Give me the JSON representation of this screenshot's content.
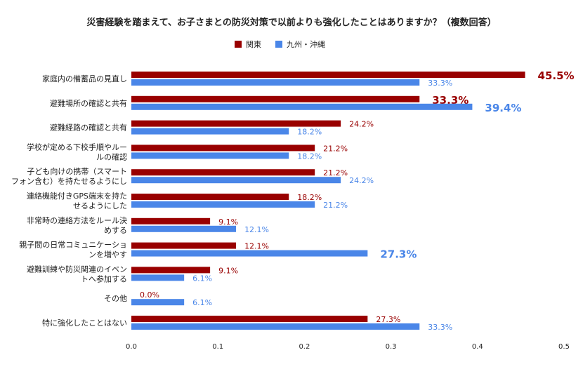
{
  "chart_data": {
    "type": "bar",
    "orientation": "horizontal",
    "title": "災害経験を踏まえて、お子さまとの防災対策で以前よりも強化したことはありますか？（複数回答）",
    "xlabel": "",
    "ylabel": "",
    "xlim": [
      0,
      0.5
    ],
    "x_ticks": [
      "0.0",
      "0.1",
      "0.2",
      "0.3",
      "0.4",
      "0.5"
    ],
    "legend_position": "top-center",
    "grid": false,
    "categories": [
      [
        "家庭内の備蓄品の見直し"
      ],
      [
        "避難場所の確認と共有"
      ],
      [
        "避難経路の確認と共有"
      ],
      [
        "学校が定める下校手順やルー",
        "ルの確認"
      ],
      [
        "子ども向けの携帯（スマート",
        "フォン含む）を持たせるようにし"
      ],
      [
        "連絡機能付きGPS端末を持た",
        "せるようにした"
      ],
      [
        "非常時の連絡方法をルール決",
        "めする"
      ],
      [
        "親子間の日常コミュニケーショ",
        "ンを増やす"
      ],
      [
        "避難訓練や防災関連のイベン",
        "トへ参加する"
      ],
      [
        "その他"
      ],
      [
        "特に強化したことはない"
      ]
    ],
    "series": [
      {
        "name": "関東",
        "color": "#990000",
        "values": [
          0.455,
          0.333,
          0.242,
          0.212,
          0.212,
          0.182,
          0.091,
          0.121,
          0.091,
          0.0,
          0.273
        ],
        "labels": [
          "45.5%",
          "33.3%",
          "24.2%",
          "21.2%",
          "21.2%",
          "18.2%",
          "9.1%",
          "12.1%",
          "9.1%",
          "0.0%",
          "27.3%"
        ],
        "emphasized": [
          true,
          true,
          false,
          false,
          false,
          false,
          false,
          false,
          false,
          false,
          false
        ]
      },
      {
        "name": "九州・沖縄",
        "color": "#4a86e8",
        "values": [
          0.333,
          0.394,
          0.182,
          0.182,
          0.242,
          0.212,
          0.121,
          0.273,
          0.061,
          0.061,
          0.333
        ],
        "labels": [
          "33.3%",
          "39.4%",
          "18.2%",
          "18.2%",
          "24.2%",
          "21.2%",
          "12.1%",
          "27.3%",
          "6.1%",
          "6.1%",
          "33.3%"
        ],
        "emphasized": [
          false,
          true,
          false,
          false,
          false,
          false,
          false,
          true,
          false,
          false,
          false
        ]
      }
    ]
  }
}
